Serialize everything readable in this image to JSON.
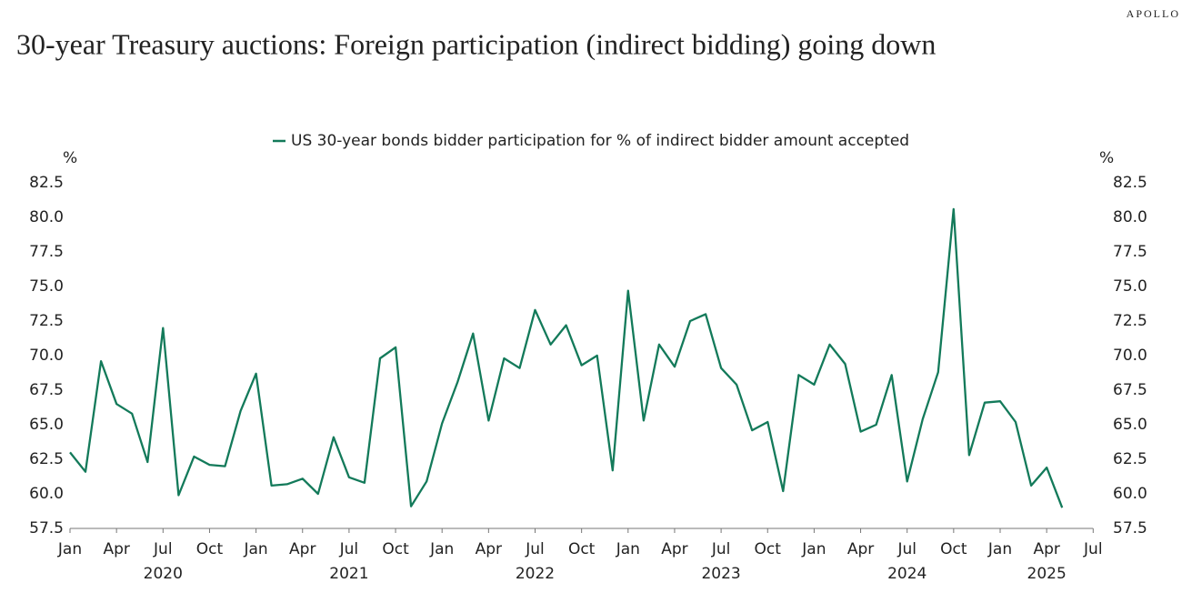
{
  "chart_data": {
    "type": "line",
    "brand": "APOLLO",
    "title": "30-year Treasury auctions: Foreign participation (indirect bidding) going down",
    "y_unit": "%",
    "y2_unit": "%",
    "categories": [
      "Jan",
      null,
      null,
      "Apr",
      null,
      null,
      "Jul",
      null,
      null,
      "Oct",
      null,
      null,
      "Jan",
      null,
      null,
      "Apr",
      null,
      null,
      "Jul",
      null,
      null,
      "Oct",
      null,
      null,
      "Jan",
      null,
      null,
      "Apr",
      null,
      null,
      "Jul",
      null,
      null,
      "Oct",
      null,
      null,
      "Jan",
      null,
      null,
      "Apr",
      null,
      null,
      "Jul",
      null,
      null,
      "Oct",
      null,
      null,
      "Jan",
      null,
      null,
      "Apr",
      null,
      null,
      "Jul",
      null,
      null,
      "Oct",
      null,
      null,
      "Jan",
      null,
      null,
      "Apr",
      null,
      null,
      "Jul"
    ],
    "years": [
      "2020",
      "2021",
      "2022",
      "2023",
      "2024",
      "2025"
    ],
    "series": [
      {
        "name": "US 30-year bonds bidder participation for % of indirect bidder amount accepted",
        "color": "#137a5a",
        "values": [
          63.0,
          61.6,
          69.6,
          66.5,
          65.8,
          62.3,
          72.0,
          59.9,
          62.7,
          62.1,
          62.0,
          66.0,
          68.7,
          60.6,
          60.7,
          61.1,
          60.0,
          64.1,
          61.2,
          60.8,
          69.8,
          70.6,
          59.1,
          60.9,
          65.1,
          68.1,
          71.6,
          65.3,
          69.8,
          69.1,
          73.3,
          70.8,
          72.2,
          69.3,
          70.0,
          61.7,
          74.7,
          65.3,
          70.8,
          69.2,
          72.5,
          73.0,
          69.1,
          67.9,
          64.6,
          65.2,
          60.2,
          68.6,
          67.9,
          70.8,
          69.4,
          64.5,
          65.0,
          68.6,
          60.9,
          65.4,
          68.8,
          80.6,
          62.8,
          66.6,
          66.7,
          65.2,
          60.6,
          61.9,
          59.0,
          null,
          null
        ]
      }
    ],
    "ylim": [
      57.5,
      82.5
    ],
    "yticks": [
      57.5,
      {
        "value": 60,
        "label": "60.0"
      },
      62.5,
      {
        "value": 65,
        "label": "65.0"
      },
      67.5,
      {
        "value": 70,
        "label": "70.0"
      },
      72.5,
      {
        "value": 75,
        "label": "75.0"
      },
      77.5,
      {
        "value": 80,
        "label": "80.0"
      },
      82.5
    ],
    "y2lim": [
      57.5,
      82.5
    ],
    "y2ticks": [
      57.5,
      {
        "value": 60,
        "label": "60.0"
      },
      62.5,
      {
        "value": 65,
        "label": "65.0"
      },
      67.5,
      {
        "value": 70,
        "label": "70.0"
      },
      72.5,
      {
        "value": 75,
        "label": "75.0"
      },
      77.5,
      {
        "value": 80,
        "label": "80.0"
      },
      82.5
    ],
    "grid": false
  }
}
